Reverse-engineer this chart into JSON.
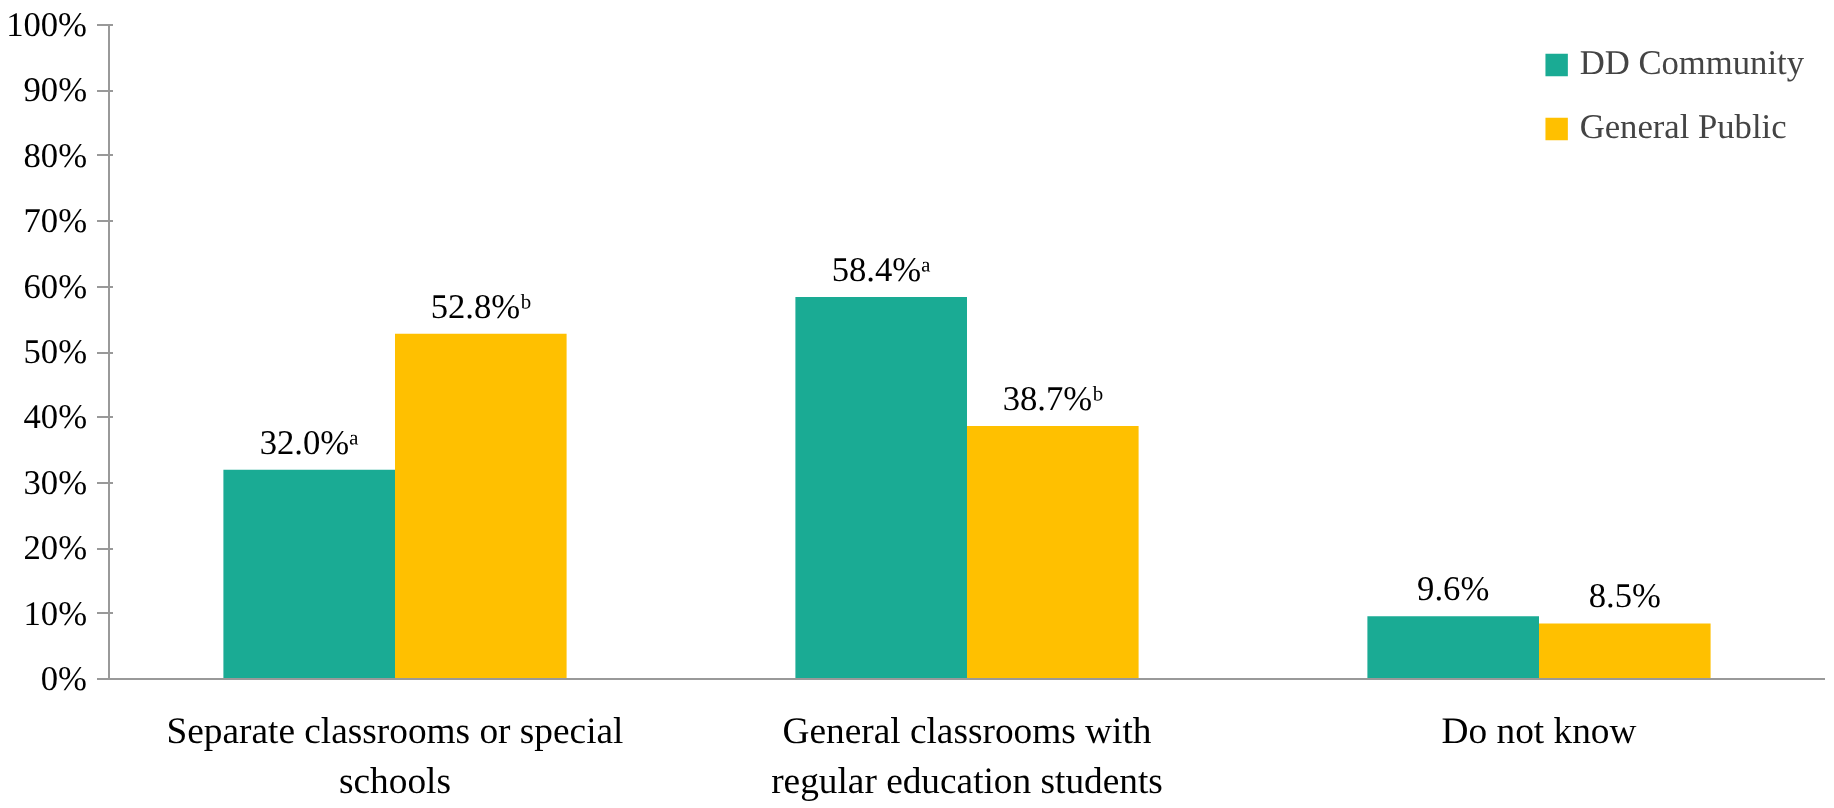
{
  "chart_data": {
    "type": "bar",
    "categories": [
      "Separate classrooms or special schools",
      "General classrooms with regular education students",
      "Do not know"
    ],
    "series": [
      {
        "name": "DD Community",
        "color": "#1aab94",
        "values": [
          32.0,
          58.4,
          9.6
        ],
        "value_labels": [
          "32.0%ᵃ",
          "58.4%ᵃ",
          "9.6%"
        ]
      },
      {
        "name": "General Public",
        "color": "#ffc000",
        "values": [
          52.8,
          38.7,
          8.5
        ],
        "value_labels": [
          "52.8%ᵇ",
          "38.7%ᵇ",
          "8.5%"
        ]
      }
    ],
    "ylim": [
      0,
      100
    ],
    "yticks": [
      {
        "value": 0,
        "label": "0%"
      },
      {
        "value": 10,
        "label": "10%"
      },
      {
        "value": 20,
        "label": "20%"
      },
      {
        "value": 30,
        "label": "30%"
      },
      {
        "value": 40,
        "label": "40%"
      },
      {
        "value": 50,
        "label": "50%"
      },
      {
        "value": 60,
        "label": "60%"
      },
      {
        "value": 70,
        "label": "70%"
      },
      {
        "value": 80,
        "label": "80%"
      },
      {
        "value": 90,
        "label": "90%"
      },
      {
        "value": 100,
        "label": "100%"
      }
    ],
    "grid": false,
    "legend": "top right"
  }
}
